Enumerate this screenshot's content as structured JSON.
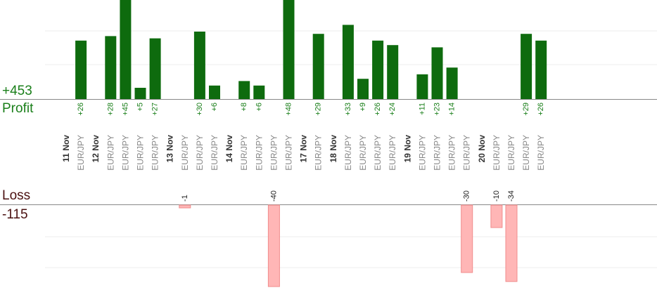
{
  "profit_total": "+453",
  "profit_label": "Profit",
  "loss_label": "Loss",
  "loss_total": "-115",
  "colors": {
    "profit_bar": "#0e6b0e",
    "profit_text": "#1a7f1a",
    "loss_bar": "#ffb6b6",
    "loss_text": "#4a1010",
    "axis": "#888888",
    "grid": "#e8e8e8"
  },
  "chart_data": {
    "type": "bar",
    "instrument": "EUR/JPY",
    "slots": [
      {
        "date": "11 Nov",
        "trades": [
          26
        ]
      },
      {
        "date": "12 Nov",
        "trades": [
          28,
          45,
          5,
          27
        ]
      },
      {
        "date": "13 Nov",
        "trades": [
          -1,
          30,
          6
        ]
      },
      {
        "date": "14 Nov",
        "trades": [
          8,
          6,
          -40,
          48
        ]
      },
      {
        "date": "17 Nov",
        "trades": [
          29
        ]
      },
      {
        "date": "18 Nov",
        "trades": [
          33,
          9,
          26,
          24
        ]
      },
      {
        "date": "19 Nov",
        "trades": [
          11,
          23,
          14,
          -30
        ]
      },
      {
        "date": "20 Nov",
        "trades": [
          -10,
          -34,
          29,
          26
        ]
      }
    ]
  }
}
